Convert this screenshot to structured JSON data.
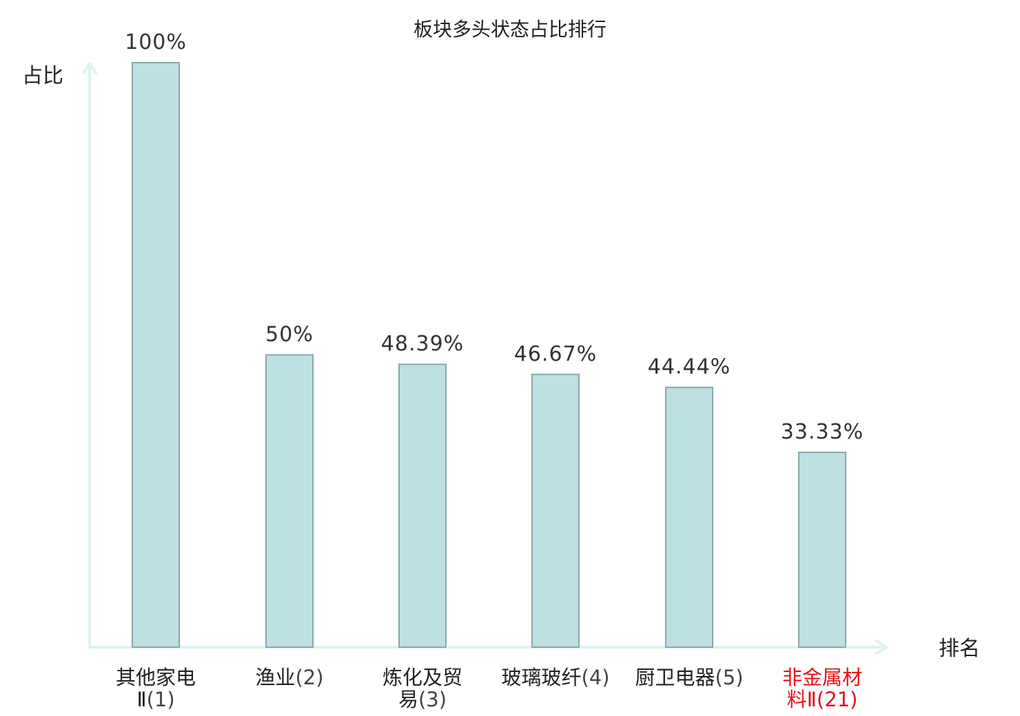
{
  "chart_data": {
    "type": "bar",
    "title": "板块多头状态占比排行",
    "ylabel": "占比",
    "xlabel": "排名",
    "ylim": [
      0,
      100
    ],
    "grid": false,
    "categories": [
      {
        "name_lines": [
          "其他家电",
          "Ⅱ"
        ],
        "rank": "(1)",
        "highlight": false
      },
      {
        "name_lines": [
          "渔业"
        ],
        "rank": "(2)",
        "highlight": false
      },
      {
        "name_lines": [
          "炼化及贸",
          "易"
        ],
        "rank": "(3)",
        "highlight": false
      },
      {
        "name_lines": [
          "玻璃玻纤"
        ],
        "rank": "(4)",
        "highlight": false
      },
      {
        "name_lines": [
          "厨卫电器"
        ],
        "rank": "(5)",
        "highlight": false
      },
      {
        "name_lines": [
          "非金属材",
          "料Ⅱ"
        ],
        "rank": "(21)",
        "highlight": true
      }
    ],
    "values": [
      100,
      50,
      48.39,
      46.67,
      44.44,
      33.33
    ],
    "value_labels": [
      "100%",
      "50%",
      "48.39%",
      "46.67%",
      "44.44%",
      "33.33%"
    ],
    "colors": {
      "bar_fill": "#bde0e3",
      "bar_stroke": "#8aa7aa",
      "axis": "#dff2ef",
      "highlight": "#e8101a"
    }
  }
}
